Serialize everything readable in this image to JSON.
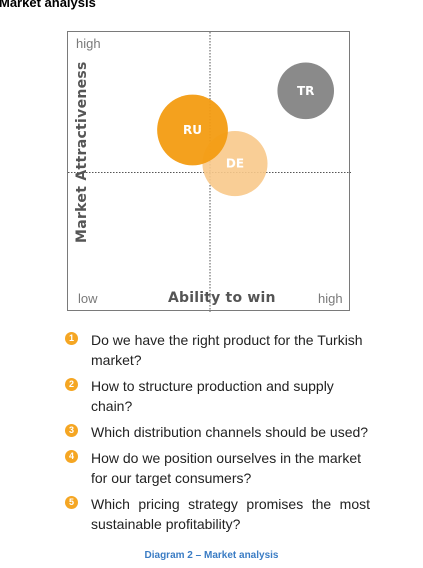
{
  "page_title": "Market analysis",
  "chart_data": {
    "type": "bubble-matrix",
    "xlabel": "Ability to win",
    "ylabel": "Market Attractiveness",
    "x_labels": {
      "low": "low",
      "high": "high"
    },
    "y_labels": {
      "high": "high"
    },
    "xlim": [
      0,
      1
    ],
    "ylim": [
      0,
      1
    ],
    "divider": {
      "x": 0.5,
      "y": 0.5
    },
    "grid": false,
    "bubbles": [
      {
        "label": "DE",
        "x": 0.59,
        "y": 0.53,
        "r": 0.115,
        "color": "#f8c98b",
        "opacity": 0.9
      },
      {
        "label": "RU",
        "x": 0.44,
        "y": 0.65,
        "r": 0.125,
        "color": "#f39c12",
        "opacity": 0.95
      },
      {
        "label": "TR",
        "x": 0.84,
        "y": 0.79,
        "r": 0.1,
        "color": "#8a8a8a",
        "opacity": 1
      }
    ]
  },
  "questions": [
    {
      "num": "1",
      "text": "Do we have the right product for the Turkish market?"
    },
    {
      "num": "2",
      "text": "How to structure production and supply chain?"
    },
    {
      "num": "3",
      "text": "Which distribution channels should be used?"
    },
    {
      "num": "4",
      "text": "How do we position ourselves in the market for our target consumers?"
    },
    {
      "num": "5",
      "text": "Which pricing strategy promises the most sustainable profitability?"
    }
  ],
  "caption": "Diagram 2 – Market analysis"
}
